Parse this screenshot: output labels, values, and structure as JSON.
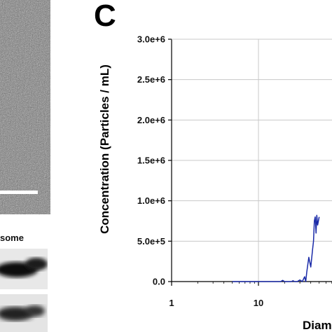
{
  "panel_label": "C",
  "left_blot_label": "some",
  "chart_data": {
    "type": "line",
    "title": "",
    "ylabel": "Concentration (Particles / mL)",
    "xlabel": "Diam",
    "xscale": "log",
    "xlim": [
      1,
      100
    ],
    "ylim": [
      0,
      3000000
    ],
    "y_ticks": [
      "0.0",
      "5.0e+5",
      "1.0e+6",
      "1.5e+6",
      "2.0e+6",
      "2.5e+6",
      "3.0e+6"
    ],
    "x_ticks": [
      "1",
      "10"
    ],
    "grid": true,
    "series_color": "#1a2aa8",
    "series": [
      {
        "x": [
          5,
          8,
          12,
          16,
          18,
          19,
          20,
          22,
          24,
          25,
          26,
          28,
          30,
          32,
          34,
          35,
          36,
          38,
          40,
          42,
          43,
          44,
          45,
          46,
          47,
          48,
          49,
          50
        ],
        "values": [
          0,
          0,
          0,
          0,
          0,
          15000,
          0,
          0,
          0,
          10000,
          0,
          0,
          20000,
          0,
          60000,
          0,
          120000,
          300000,
          180000,
          400000,
          500000,
          750000,
          800000,
          600000,
          820000,
          700000,
          750000,
          800000
        ]
      }
    ]
  }
}
